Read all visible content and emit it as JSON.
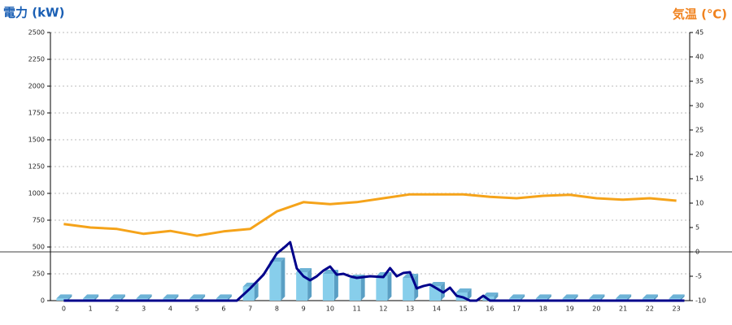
{
  "chart_data": {
    "type": "combo",
    "y_label": "電力 (kW)",
    "y2_label": "気温 (℃)",
    "categories": [
      "0",
      "1",
      "2",
      "3",
      "4",
      "5",
      "6",
      "7",
      "8",
      "9",
      "10",
      "11",
      "12",
      "13",
      "14",
      "15",
      "16",
      "17",
      "18",
      "19",
      "20",
      "21",
      "22",
      "23"
    ],
    "ylim": [
      0,
      2500
    ],
    "yticks": [
      0,
      250,
      500,
      750,
      1000,
      1250,
      1500,
      1750,
      2000,
      2250,
      2500
    ],
    "y2lim": [
      -10,
      45
    ],
    "y2ticks": [
      -10,
      -5,
      0,
      5,
      10,
      15,
      20,
      25,
      30,
      35,
      40,
      45
    ],
    "grid": true,
    "series": [
      {
        "type": "bar",
        "color": "#87ceeb",
        "values": [
          20,
          20,
          20,
          20,
          20,
          20,
          20,
          130,
          364,
          265,
          250,
          205,
          227,
          212,
          136,
          76,
          38,
          20,
          20,
          20,
          20,
          20,
          20,
          20
        ]
      },
      {
        "type": "line",
        "color": "#00008b",
        "x": [
          0,
          6.5,
          7,
          7.5,
          8,
          8.25,
          8.5,
          8.75,
          9,
          9.25,
          9.5,
          9.75,
          10,
          10.25,
          10.5,
          10.75,
          11,
          11.5,
          12,
          12.25,
          12.5,
          12.75,
          13,
          13.25,
          13.5,
          13.75,
          14,
          14.25,
          14.5,
          14.75,
          15,
          15.25,
          15.5,
          15.75,
          16,
          23.3
        ],
        "values": [
          0,
          0,
          114,
          242,
          440,
          490,
          545,
          300,
          227,
          190,
          227,
          280,
          318,
          242,
          250,
          227,
          212,
          227,
          220,
          303,
          227,
          258,
          265,
          114,
          136,
          150,
          114,
          76,
          121,
          45,
          30,
          0,
          0,
          45,
          0,
          0
        ]
      },
      {
        "type": "line",
        "axis": "y2",
        "color": "#f5a31a",
        "values": [
          5.7,
          5,
          4.7,
          3.7,
          4.3,
          3.3,
          4.2,
          4.7,
          8.3,
          10.2,
          9.8,
          10.2,
          11,
          11.8,
          11.8,
          11.8,
          11.3,
          11,
          11.5,
          11.7,
          11,
          10.7,
          11,
          10.5
        ]
      }
    ]
  }
}
